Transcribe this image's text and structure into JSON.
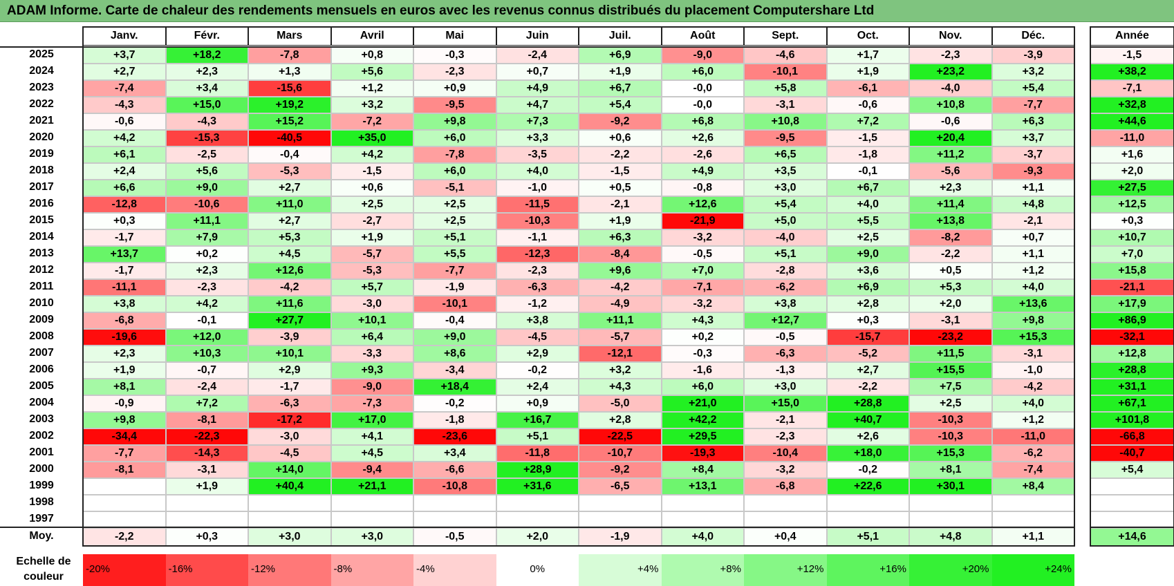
{
  "title": "ADAM Informe. Carte de chaleur des rendements mensuels en euros avec les revenus connus distribués du placement Computershare Ltd",
  "chart_data": {
    "type": "heatmap",
    "months": [
      "Janv.",
      "Févr.",
      "Mars",
      "Avril",
      "Mai",
      "Juin",
      "Juil.",
      "Août",
      "Sept.",
      "Oct.",
      "Nov.",
      "Déc."
    ],
    "year_header": "Année",
    "rows": [
      {
        "year": "2025",
        "values": [
          "+3,7",
          "+18,2",
          "-7,8",
          "+0,8",
          "-0,3",
          "-2,4",
          "+6,9",
          "-9,0",
          "-4,6",
          "+1,7",
          "-2,3",
          "-3,9"
        ],
        "annual": "-1,5"
      },
      {
        "year": "2024",
        "values": [
          "+2,7",
          "+2,3",
          "+1,3",
          "+5,6",
          "-2,3",
          "+0,7",
          "+1,9",
          "+6,0",
          "-10,1",
          "+1,9",
          "+23,2",
          "+3,2"
        ],
        "annual": "+38,2"
      },
      {
        "year": "2023",
        "values": [
          "-7,4",
          "+3,4",
          "-15,6",
          "+1,2",
          "+0,9",
          "+4,9",
          "+6,7",
          "-0,0",
          "+5,8",
          "-6,1",
          "-4,0",
          "+5,4"
        ],
        "annual": "-7,1"
      },
      {
        "year": "2022",
        "values": [
          "-4,3",
          "+15,0",
          "+19,2",
          "+3,2",
          "-9,5",
          "+4,7",
          "+5,4",
          "-0,0",
          "-3,1",
          "-0,6",
          "+10,8",
          "-7,7"
        ],
        "annual": "+32,8"
      },
      {
        "year": "2021",
        "values": [
          "-0,6",
          "-4,3",
          "+15,2",
          "-7,2",
          "+9,8",
          "+7,3",
          "-9,2",
          "+6,8",
          "+10,8",
          "+7,2",
          "-0,6",
          "+6,3"
        ],
        "annual": "+44,6"
      },
      {
        "year": "2020",
        "values": [
          "+4,2",
          "-15,3",
          "-40,5",
          "+35,0",
          "+6,0",
          "+3,3",
          "+0,6",
          "+2,6",
          "-9,5",
          "-1,5",
          "+20,4",
          "+3,7"
        ],
        "annual": "-11,0"
      },
      {
        "year": "2019",
        "values": [
          "+6,1",
          "-2,5",
          "-0,4",
          "+4,2",
          "-7,8",
          "-3,5",
          "-2,2",
          "-2,6",
          "+6,5",
          "-1,8",
          "+11,2",
          "-3,7"
        ],
        "annual": "+1,6"
      },
      {
        "year": "2018",
        "values": [
          "+2,4",
          "+5,6",
          "-5,3",
          "-1,5",
          "+6,0",
          "+4,0",
          "-1,5",
          "+4,9",
          "+3,5",
          "-0,1",
          "-5,6",
          "-9,3"
        ],
        "annual": "+2,0"
      },
      {
        "year": "2017",
        "values": [
          "+6,6",
          "+9,0",
          "+2,7",
          "+0,6",
          "-5,1",
          "-1,0",
          "+0,5",
          "-0,8",
          "+3,0",
          "+6,7",
          "+2,3",
          "+1,1"
        ],
        "annual": "+27,5"
      },
      {
        "year": "2016",
        "values": [
          "-12,8",
          "-10,6",
          "+11,0",
          "+2,5",
          "+2,5",
          "-11,5",
          "-2,1",
          "+12,6",
          "+5,4",
          "+4,0",
          "+11,4",
          "+4,8"
        ],
        "annual": "+12,5"
      },
      {
        "year": "2015",
        "values": [
          "+0,3",
          "+11,1",
          "+2,7",
          "-2,7",
          "+2,5",
          "-10,3",
          "+1,9",
          "-21,9",
          "+5,0",
          "+5,5",
          "+13,8",
          "-2,1"
        ],
        "annual": "+0,3"
      },
      {
        "year": "2014",
        "values": [
          "-1,7",
          "+7,9",
          "+5,3",
          "+1,9",
          "+5,1",
          "-1,1",
          "+6,3",
          "-3,2",
          "-4,0",
          "+2,5",
          "-8,2",
          "+0,7"
        ],
        "annual": "+10,7"
      },
      {
        "year": "2013",
        "values": [
          "+13,7",
          "+0,2",
          "+4,5",
          "-5,7",
          "+5,5",
          "-12,3",
          "-8,4",
          "-0,5",
          "+5,1",
          "+9,0",
          "-2,2",
          "+1,1"
        ],
        "annual": "+7,0"
      },
      {
        "year": "2012",
        "values": [
          "-1,7",
          "+2,3",
          "+12,6",
          "-5,3",
          "-7,7",
          "-2,3",
          "+9,6",
          "+7,0",
          "-2,8",
          "+3,6",
          "+0,5",
          "+1,2"
        ],
        "annual": "+15,8"
      },
      {
        "year": "2011",
        "values": [
          "-11,1",
          "-2,3",
          "-4,2",
          "+5,7",
          "-1,9",
          "-6,3",
          "-4,2",
          "-7,1",
          "-6,2",
          "+6,9",
          "+5,3",
          "+4,0"
        ],
        "annual": "-21,1"
      },
      {
        "year": "2010",
        "values": [
          "+3,8",
          "+4,2",
          "+11,6",
          "-3,0",
          "-10,1",
          "-1,2",
          "-4,9",
          "-3,2",
          "+3,8",
          "+2,8",
          "+2,0",
          "+13,6"
        ],
        "annual": "+17,9"
      },
      {
        "year": "2009",
        "values": [
          "-6,8",
          "-0,1",
          "+27,7",
          "+10,1",
          "-0,4",
          "+3,8",
          "+11,1",
          "+4,3",
          "+12,7",
          "+0,3",
          "-3,1",
          "+9,8"
        ],
        "annual": "+86,9"
      },
      {
        "year": "2008",
        "values": [
          "-19,6",
          "+12,0",
          "-3,9",
          "+6,4",
          "+9,0",
          "-4,5",
          "-5,7",
          "+0,2",
          "-0,5",
          "-15,7",
          "-23,2",
          "+15,3"
        ],
        "annual": "-32,1"
      },
      {
        "year": "2007",
        "values": [
          "+2,3",
          "+10,3",
          "+10,1",
          "-3,3",
          "+8,6",
          "+2,9",
          "-12,1",
          "-0,3",
          "-6,3",
          "-5,2",
          "+11,5",
          "-3,1"
        ],
        "annual": "+12,8"
      },
      {
        "year": "2006",
        "values": [
          "+1,9",
          "-0,7",
          "+2,9",
          "+9,3",
          "-3,4",
          "-0,2",
          "+3,2",
          "-1,6",
          "-1,3",
          "+2,7",
          "+15,5",
          "-1,0"
        ],
        "annual": "+28,8"
      },
      {
        "year": "2005",
        "values": [
          "+8,1",
          "-2,4",
          "-1,7",
          "-9,0",
          "+18,4",
          "+2,4",
          "+4,3",
          "+6,0",
          "+3,0",
          "-2,2",
          "+7,5",
          "-4,2"
        ],
        "annual": "+31,1"
      },
      {
        "year": "2004",
        "values": [
          "-0,9",
          "+7,2",
          "-6,3",
          "-7,3",
          "-0,2",
          "+0,9",
          "-5,0",
          "+21,0",
          "+15,0",
          "+28,8",
          "+2,5",
          "+4,0"
        ],
        "annual": "+67,1"
      },
      {
        "year": "2003",
        "values": [
          "+9,8",
          "-8,1",
          "-17,2",
          "+17,0",
          "-1,8",
          "+16,7",
          "+2,8",
          "+42,2",
          "-2,1",
          "+40,7",
          "-10,3",
          "+1,2"
        ],
        "annual": "+101,8"
      },
      {
        "year": "2002",
        "values": [
          "-34,4",
          "-22,3",
          "-3,0",
          "+4,1",
          "-23,6",
          "+5,1",
          "-22,5",
          "+29,5",
          "-2,3",
          "+2,6",
          "-10,3",
          "-11,0"
        ],
        "annual": "-66,8"
      },
      {
        "year": "2001",
        "values": [
          "-7,7",
          "-14,3",
          "-4,5",
          "+4,5",
          "+3,4",
          "-11,8",
          "-10,7",
          "-19,3",
          "-10,4",
          "+18,0",
          "+15,3",
          "-6,2"
        ],
        "annual": "-40,7"
      },
      {
        "year": "2000",
        "values": [
          "-8,1",
          "-3,1",
          "+14,0",
          "-9,4",
          "-6,6",
          "+28,9",
          "-9,2",
          "+8,4",
          "-3,2",
          "-0,2",
          "+8,1",
          "-7,4"
        ],
        "annual": "+5,4"
      },
      {
        "year": "1999",
        "values": [
          "",
          "+1,9",
          "+40,4",
          "+21,1",
          "-10,8",
          "+31,6",
          "-6,5",
          "+13,1",
          "-6,8",
          "+22,6",
          "+30,1",
          "+8,4"
        ],
        "annual": ""
      },
      {
        "year": "1998",
        "values": [
          "",
          "",
          "",
          "",
          "",
          "",
          "",
          "",
          "",
          "",
          "",
          ""
        ],
        "annual": ""
      },
      {
        "year": "1997",
        "values": [
          "",
          "",
          "",
          "",
          "",
          "",
          "",
          "",
          "",
          "",
          "",
          ""
        ],
        "annual": ""
      }
    ],
    "average": {
      "label": "Moy.",
      "values": [
        "-2,2",
        "+0,3",
        "+3,0",
        "+3,0",
        "-0,5",
        "+2,0",
        "-1,9",
        "+4,0",
        "+0,4",
        "+5,1",
        "+4,8",
        "+1,1"
      ],
      "annual": "+14,6"
    },
    "scale": {
      "label_line1": "Echelle de",
      "label_line2": "couleur",
      "stops": [
        "-20%",
        "-16%",
        "-12%",
        "-8%",
        "-4%",
        "0%",
        "+4%",
        "+8%",
        "+12%",
        "+16%",
        "+20%",
        "+24%"
      ]
    }
  }
}
